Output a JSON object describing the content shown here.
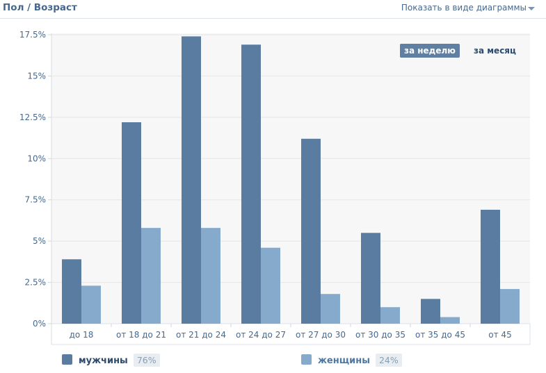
{
  "header": {
    "title": "Пол / Возраст",
    "view_toggle": "Показать в виде диаграммы"
  },
  "period": {
    "week": "за неделю",
    "month": "за месяц",
    "selected": "week"
  },
  "colors": {
    "men": "#5b7ca1",
    "women": "#86aacc",
    "plot_bg": "#f7f7f7",
    "axis_text": "#45688e"
  },
  "legend": {
    "men_label": "мужчины",
    "men_pct": "76%",
    "women_label": "женщины",
    "women_pct": "24%"
  },
  "chart_data": {
    "type": "bar",
    "categories": [
      "до 18",
      "от 18 до 21",
      "от 21 до 24",
      "от 24 до 27",
      "от 27 до 30",
      "от 30 до 35",
      "от 35 до 45",
      "от 45"
    ],
    "series": [
      {
        "name": "мужчины",
        "values": [
          3.9,
          12.2,
          17.4,
          16.9,
          11.2,
          5.5,
          1.5,
          6.9
        ]
      },
      {
        "name": "женщины",
        "values": [
          2.3,
          5.8,
          5.8,
          4.6,
          1.8,
          1.0,
          0.4,
          2.1
        ]
      }
    ],
    "yticks": [
      "0%",
      "2.5%",
      "5%",
      "7.5%",
      "10%",
      "12.5%",
      "15%",
      "17.5%"
    ],
    "ylim": [
      0,
      17.5
    ],
    "grid": true,
    "legend_position": "bottom"
  }
}
